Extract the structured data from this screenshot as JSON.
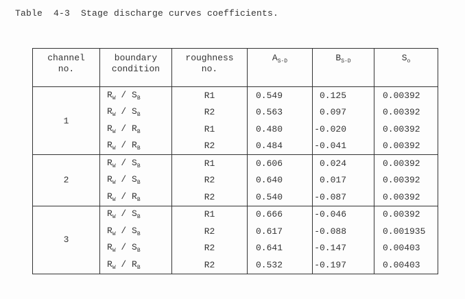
{
  "title": "Table  4-3  Stage discharge curves coefficients.",
  "headers": {
    "channel": [
      "channel",
      "no."
    ],
    "boundary": [
      "boundary",
      "condition"
    ],
    "roughness": [
      "roughness",
      "no."
    ],
    "a": {
      "main": "A",
      "sub": "S-D"
    },
    "b": {
      "main": "B",
      "sub": "S-D"
    },
    "s": {
      "main": "S",
      "sub": "o"
    }
  },
  "groups": [
    {
      "channel": "1",
      "rows": [
        {
          "bc": [
            "R",
            "W",
            "S",
            "B"
          ],
          "roughness": "R1",
          "a": "0.549",
          "b": "0.125",
          "s": "0.00392"
        },
        {
          "bc": [
            "R",
            "W",
            "S",
            "B"
          ],
          "roughness": "R2",
          "a": "0.563",
          "b": "0.097",
          "s": "0.00392"
        },
        {
          "bc": [
            "R",
            "W",
            "R",
            "B"
          ],
          "roughness": "R1",
          "a": "0.480",
          "b": "-0.020",
          "s": "0.00392"
        },
        {
          "bc": [
            "R",
            "W",
            "R",
            "B"
          ],
          "roughness": "R2",
          "a": "0.484",
          "b": "-0.041",
          "s": "0.00392"
        }
      ]
    },
    {
      "channel": "2",
      "rows": [
        {
          "bc": [
            "R",
            "W",
            "S",
            "B"
          ],
          "roughness": "R1",
          "a": "0.606",
          "b": "0.024",
          "s": "0.00392"
        },
        {
          "bc": [
            "R",
            "W",
            "S",
            "B"
          ],
          "roughness": "R2",
          "a": "0.640",
          "b": "0.017",
          "s": "0.00392"
        },
        {
          "bc": [
            "R",
            "W",
            "R",
            "B"
          ],
          "roughness": "R2",
          "a": "0.540",
          "b": "-0.087",
          "s": "0.00392"
        }
      ]
    },
    {
      "channel": "3",
      "rows": [
        {
          "bc": [
            "R",
            "W",
            "S",
            "B"
          ],
          "roughness": "R1",
          "a": "0.666",
          "b": "-0.046",
          "s": "0.00392"
        },
        {
          "bc": [
            "R",
            "W",
            "S",
            "B"
          ],
          "roughness": "R2",
          "a": "0.617",
          "b": "-0.088",
          "s": "0.001935"
        },
        {
          "bc": [
            "R",
            "W",
            "S",
            "B"
          ],
          "roughness": "R2",
          "a": "0.641",
          "b": "-0.147",
          "s": "0.00403"
        },
        {
          "bc": [
            "R",
            "W",
            "R",
            "B"
          ],
          "roughness": "R2",
          "a": "0.532",
          "b": "-0.197",
          "s": "0.00403"
        }
      ]
    }
  ]
}
